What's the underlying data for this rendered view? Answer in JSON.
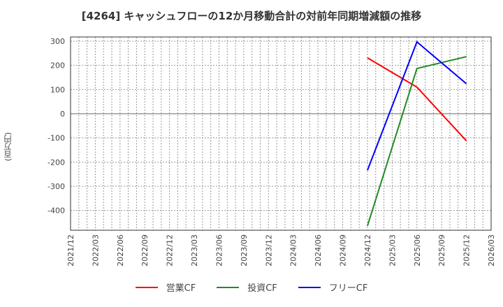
{
  "title": "[4264]  キャッシュフローの12か月移動合計の対前年同期増減額の推移",
  "y_axis_label": "(百万円)",
  "chart_data": {
    "type": "line",
    "title": "[4264]  キャッシュフローの12か月移動合計の対前年同期増減額の推移",
    "xlabel": "",
    "ylabel": "(百万円)",
    "ylim": [
      -480,
      320
    ],
    "yticks": [
      300,
      200,
      100,
      0,
      -100,
      -200,
      -300,
      -400
    ],
    "grid": true,
    "legend_position": "bottom",
    "x": [
      "2021/12",
      "2022/03",
      "2022/06",
      "2022/09",
      "2022/12",
      "2023/03",
      "2023/06",
      "2023/09",
      "2023/12",
      "2024/03",
      "2024/06",
      "2024/09",
      "2024/12",
      "2025/03",
      "2025/06",
      "2025/09",
      "2025/12",
      "2026/03"
    ],
    "series": [
      {
        "name": "営業CF",
        "color": "#ff0000",
        "points": [
          [
            "2024/12",
            231
          ],
          [
            "2025/06",
            110
          ],
          [
            "2025/12",
            -112
          ]
        ]
      },
      {
        "name": "投資CF",
        "color": "#228b22",
        "points": [
          [
            "2024/12",
            -464
          ],
          [
            "2025/06",
            187
          ],
          [
            "2025/12",
            236
          ]
        ]
      },
      {
        "name": "フリーCF",
        "color": "#0000ff",
        "points": [
          [
            "2024/12",
            -234
          ],
          [
            "2025/06",
            297
          ],
          [
            "2025/12",
            124
          ]
        ]
      }
    ]
  },
  "legend": [
    {
      "label": "営業CF",
      "color": "#ff0000"
    },
    {
      "label": "投資CF",
      "color": "#228b22"
    },
    {
      "label": "フリーCF",
      "color": "#0000ff"
    }
  ]
}
